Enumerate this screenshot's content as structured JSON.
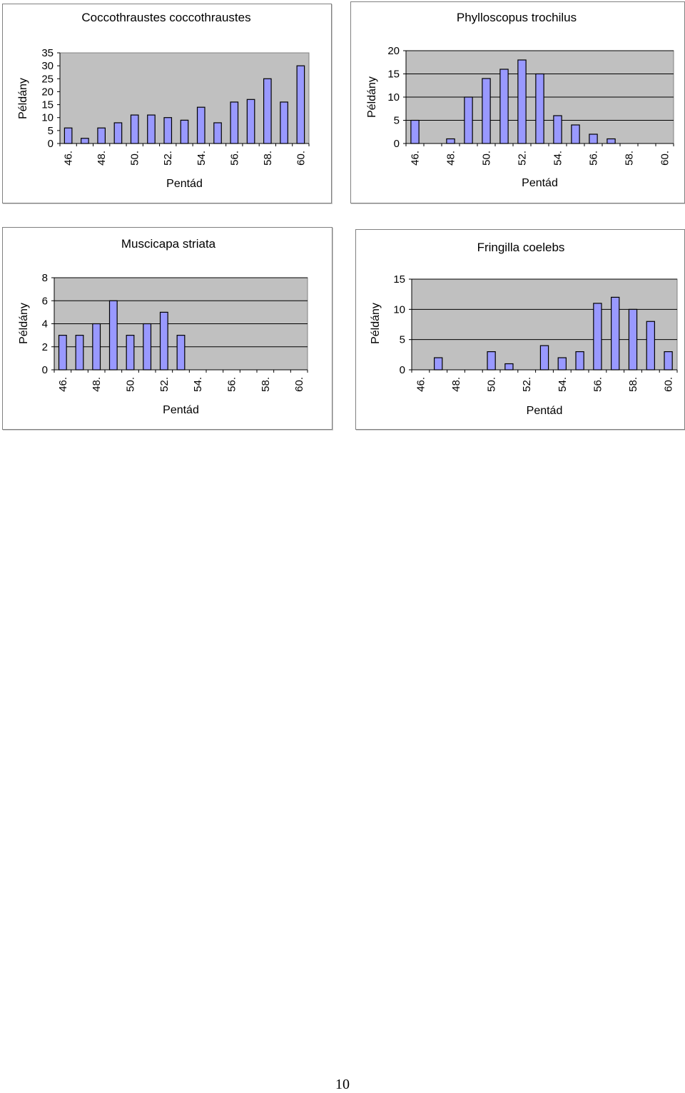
{
  "page": {
    "number": "10"
  },
  "style": {
    "plot_bg": "#C0C0C0",
    "bar_fill": "#9999FF",
    "bar_stroke": "#000000",
    "grid": "#000000"
  },
  "chart_data": [
    {
      "type": "bar",
      "title": "Coccothraustes coccothraustes",
      "xlabel": "Pentád",
      "ylabel": "Példány",
      "ylim": [
        0,
        35
      ],
      "yticks": [
        0,
        5,
        10,
        15,
        20,
        25,
        30,
        35
      ],
      "grid": false,
      "x": [
        46,
        47,
        48,
        49,
        50,
        51,
        52,
        53,
        54,
        55,
        56,
        57,
        58,
        59,
        60
      ],
      "tick_labels": [
        "46.",
        "48.",
        "50.",
        "52.",
        "54.",
        "56.",
        "58.",
        "60."
      ],
      "values": [
        6,
        2,
        6,
        8,
        11,
        11,
        10,
        9,
        14,
        8,
        16,
        17,
        25,
        16,
        30
      ]
    },
    {
      "type": "bar",
      "title": "Phylloscopus trochilus",
      "xlabel": "Pentád",
      "ylabel": "Példány",
      "ylim": [
        0,
        20
      ],
      "yticks": [
        0,
        5,
        10,
        15,
        20
      ],
      "grid": true,
      "x": [
        46,
        47,
        48,
        49,
        50,
        51,
        52,
        53,
        54,
        55,
        56,
        57,
        58,
        59,
        60
      ],
      "tick_labels": [
        "46.",
        "48.",
        "50.",
        "52.",
        "54.",
        "56.",
        "58.",
        "60."
      ],
      "values": [
        5,
        0,
        1,
        10,
        14,
        16,
        18,
        15,
        6,
        4,
        2,
        1,
        0,
        0,
        0
      ]
    },
    {
      "type": "bar",
      "title": "Muscicapa striata",
      "xlabel": "Pentád",
      "ylabel": "Példány",
      "ylim": [
        0,
        8
      ],
      "yticks": [
        0,
        2,
        4,
        6,
        8
      ],
      "grid": true,
      "x": [
        46,
        47,
        48,
        49,
        50,
        51,
        52,
        53,
        54,
        55,
        56,
        57,
        58,
        59,
        60
      ],
      "tick_labels": [
        "46.",
        "48.",
        "50.",
        "52.",
        "54.",
        "56.",
        "58.",
        "60."
      ],
      "values": [
        3,
        3,
        4,
        6,
        3,
        4,
        5,
        3,
        0,
        0,
        0,
        0,
        0,
        0,
        0
      ]
    },
    {
      "type": "bar",
      "title": "Fringilla coelebs",
      "xlabel": "Pentád",
      "ylabel": "Példány",
      "ylim": [
        0,
        15
      ],
      "yticks": [
        0,
        5,
        10,
        15
      ],
      "grid": true,
      "x": [
        46,
        47,
        48,
        49,
        50,
        51,
        52,
        53,
        54,
        55,
        56,
        57,
        58,
        59,
        60
      ],
      "tick_labels": [
        "46.",
        "48.",
        "50.",
        "52.",
        "54.",
        "56.",
        "58.",
        "60."
      ],
      "values": [
        0,
        2,
        0,
        0,
        3,
        1,
        0,
        4,
        2,
        3,
        11,
        12,
        10,
        8,
        3
      ]
    }
  ]
}
